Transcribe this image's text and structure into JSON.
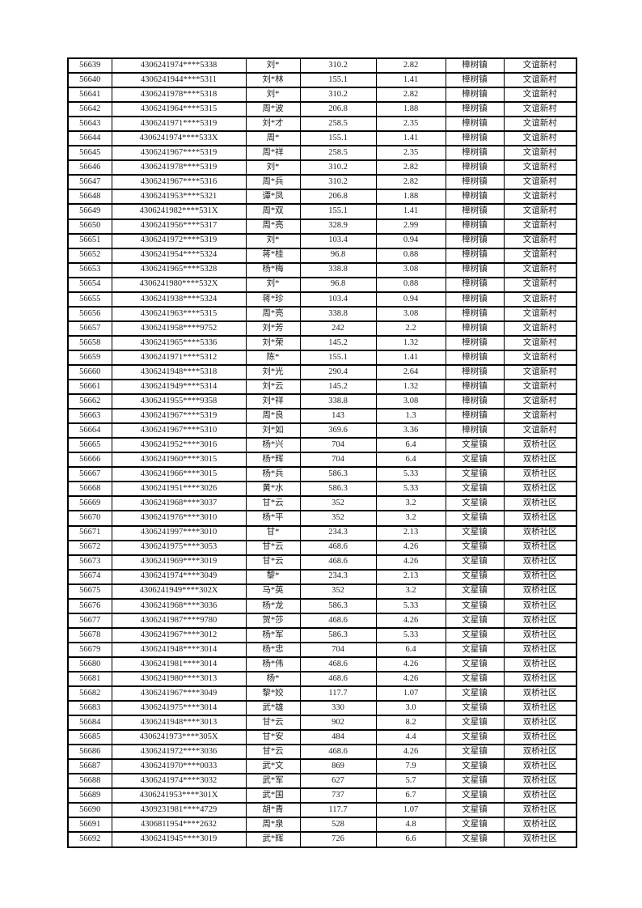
{
  "page": {
    "background": "#ffffff"
  },
  "colors": {
    "border": "#000000",
    "text": "#1a1a1a"
  },
  "table": {
    "column_semantics": [
      "serial",
      "id-number",
      "name",
      "amount-primary",
      "amount-secondary",
      "town",
      "village"
    ],
    "rows": [
      [
        "56639",
        "4306241974****5338",
        "刘*",
        "310.2",
        "2.82",
        "樟树镇",
        "文谊新村"
      ],
      [
        "56640",
        "4306241944****5311",
        "刘*林",
        "155.1",
        "1.41",
        "樟树镇",
        "文谊新村"
      ],
      [
        "56641",
        "4306241978****5318",
        "刘*",
        "310.2",
        "2.82",
        "樟树镇",
        "文谊新村"
      ],
      [
        "56642",
        "4306241964****5315",
        "周*波",
        "206.8",
        "1.88",
        "樟树镇",
        "文谊新村"
      ],
      [
        "56643",
        "4306241971****5319",
        "刘*才",
        "258.5",
        "2.35",
        "樟树镇",
        "文谊新村"
      ],
      [
        "56644",
        "4306241974****533X",
        "周*",
        "155.1",
        "1.41",
        "樟树镇",
        "文谊新村"
      ],
      [
        "56645",
        "4306241967****5319",
        "周*祥",
        "258.5",
        "2.35",
        "樟树镇",
        "文谊新村"
      ],
      [
        "56646",
        "4306241978****5319",
        "刘*",
        "310.2",
        "2.82",
        "樟树镇",
        "文谊新村"
      ],
      [
        "56647",
        "4306241967****5316",
        "周*兵",
        "310.2",
        "2.82",
        "樟树镇",
        "文谊新村"
      ],
      [
        "56648",
        "4306241953****5321",
        "谭*凤",
        "206.8",
        "1.88",
        "樟树镇",
        "文谊新村"
      ],
      [
        "56649",
        "4306241982****531X",
        "周*双",
        "155.1",
        "1.41",
        "樟树镇",
        "文谊新村"
      ],
      [
        "56650",
        "4306241956****5317",
        "周*亮",
        "328.9",
        "2.99",
        "樟树镇",
        "文谊新村"
      ],
      [
        "56651",
        "4306241972****5319",
        "刘*",
        "103.4",
        "0.94",
        "樟树镇",
        "文谊新村"
      ],
      [
        "56652",
        "4306241954****5324",
        "蒋*桂",
        "96.8",
        "0.88",
        "樟树镇",
        "文谊新村"
      ],
      [
        "56653",
        "4306241965****5328",
        "杨*梅",
        "338.8",
        "3.08",
        "樟树镇",
        "文谊新村"
      ],
      [
        "56654",
        "4306241980****532X",
        "刘*",
        "96.8",
        "0.88",
        "樟树镇",
        "文谊新村"
      ],
      [
        "56655",
        "4306241938****5324",
        "蒋*珍",
        "103.4",
        "0.94",
        "樟树镇",
        "文谊新村"
      ],
      [
        "56656",
        "4306241963****5315",
        "周*亮",
        "338.8",
        "3.08",
        "樟树镇",
        "文谊新村"
      ],
      [
        "56657",
        "4306241958****9752",
        "刘*芳",
        "242",
        "2.2",
        "樟树镇",
        "文谊新村"
      ],
      [
        "56658",
        "4306241965****5336",
        "刘*荣",
        "145.2",
        "1.32",
        "樟树镇",
        "文谊新村"
      ],
      [
        "56659",
        "4306241971****5312",
        "陈*",
        "155.1",
        "1.41",
        "樟树镇",
        "文谊新村"
      ],
      [
        "56660",
        "4306241948****5318",
        "刘*光",
        "290.4",
        "2.64",
        "樟树镇",
        "文谊新村"
      ],
      [
        "56661",
        "4306241949****5314",
        "刘*云",
        "145.2",
        "1.32",
        "樟树镇",
        "文谊新村"
      ],
      [
        "56662",
        "4306241955****9358",
        "刘*祥",
        "338.8",
        "3.08",
        "樟树镇",
        "文谊新村"
      ],
      [
        "56663",
        "4306241967****5319",
        "周*良",
        "143",
        "1.3",
        "樟树镇",
        "文谊新村"
      ],
      [
        "56664",
        "4306241967****5310",
        "刘*如",
        "369.6",
        "3.36",
        "樟树镇",
        "文谊新村"
      ],
      [
        "56665",
        "4306241952****3016",
        "杨*兴",
        "704",
        "6.4",
        "文星镇",
        "双桥社区"
      ],
      [
        "56666",
        "4306241960****3015",
        "杨*辉",
        "704",
        "6.4",
        "文星镇",
        "双桥社区"
      ],
      [
        "56667",
        "4306241966****3015",
        "杨*兵",
        "586.3",
        "5.33",
        "文星镇",
        "双桥社区"
      ],
      [
        "56668",
        "4306241951****3026",
        "黄*水",
        "586.3",
        "5.33",
        "文星镇",
        "双桥社区"
      ],
      [
        "56669",
        "4306241968****3037",
        "甘*云",
        "352",
        "3.2",
        "文星镇",
        "双桥社区"
      ],
      [
        "56670",
        "4306241976****3010",
        "杨*平",
        "352",
        "3.2",
        "文星镇",
        "双桥社区"
      ],
      [
        "56671",
        "4306241997****3010",
        "甘*",
        "234.3",
        "2.13",
        "文星镇",
        "双桥社区"
      ],
      [
        "56672",
        "4306241975****3053",
        "甘*云",
        "468.6",
        "4.26",
        "文星镇",
        "双桥社区"
      ],
      [
        "56673",
        "4306241969****3019",
        "甘*云",
        "468.6",
        "4.26",
        "文星镇",
        "双桥社区"
      ],
      [
        "56674",
        "4306241974****3049",
        "黎*",
        "234.3",
        "2.13",
        "文星镇",
        "双桥社区"
      ],
      [
        "56675",
        "4306241949****302X",
        "马*英",
        "352",
        "3.2",
        "文星镇",
        "双桥社区"
      ],
      [
        "56676",
        "4306241968****3036",
        "杨*龙",
        "586.3",
        "5.33",
        "文星镇",
        "双桥社区"
      ],
      [
        "56677",
        "4306241987****9780",
        "贺*莎",
        "468.6",
        "4.26",
        "文星镇",
        "双桥社区"
      ],
      [
        "56678",
        "4306241967****3012",
        "杨*军",
        "586.3",
        "5.33",
        "文星镇",
        "双桥社区"
      ],
      [
        "56679",
        "4306241948****3014",
        "杨*忠",
        "704",
        "6.4",
        "文星镇",
        "双桥社区"
      ],
      [
        "56680",
        "4306241981****3014",
        "杨*伟",
        "468.6",
        "4.26",
        "文星镇",
        "双桥社区"
      ],
      [
        "56681",
        "4306241980****3013",
        "杨*",
        "468.6",
        "4.26",
        "文星镇",
        "双桥社区"
      ],
      [
        "56682",
        "4306241967****3049",
        "黎*姣",
        "117.7",
        "1.07",
        "文星镇",
        "双桥社区"
      ],
      [
        "56683",
        "4306241975****3014",
        "武*雄",
        "330",
        "3.0",
        "文星镇",
        "双桥社区"
      ],
      [
        "56684",
        "4306241948****3013",
        "甘*云",
        "902",
        "8.2",
        "文星镇",
        "双桥社区"
      ],
      [
        "56685",
        "4306241973****305X",
        "甘*安",
        "484",
        "4.4",
        "文星镇",
        "双桥社区"
      ],
      [
        "56686",
        "4306241972****3036",
        "甘*云",
        "468.6",
        "4.26",
        "文星镇",
        "双桥社区"
      ],
      [
        "56687",
        "4306241970****0033",
        "武*文",
        "869",
        "7.9",
        "文星镇",
        "双桥社区"
      ],
      [
        "56688",
        "4306241974****3032",
        "武*军",
        "627",
        "5.7",
        "文星镇",
        "双桥社区"
      ],
      [
        "56689",
        "4306241953****301X",
        "武*国",
        "737",
        "6.7",
        "文星镇",
        "双桥社区"
      ],
      [
        "56690",
        "4309231981****4729",
        "胡*青",
        "117.7",
        "1.07",
        "文星镇",
        "双桥社区"
      ],
      [
        "56691",
        "4306811954****2632",
        "周*泉",
        "528",
        "4.8",
        "文星镇",
        "双桥社区"
      ],
      [
        "56692",
        "4306241945****3019",
        "武*辉",
        "726",
        "6.6",
        "文星镇",
        "双桥社区"
      ]
    ]
  }
}
